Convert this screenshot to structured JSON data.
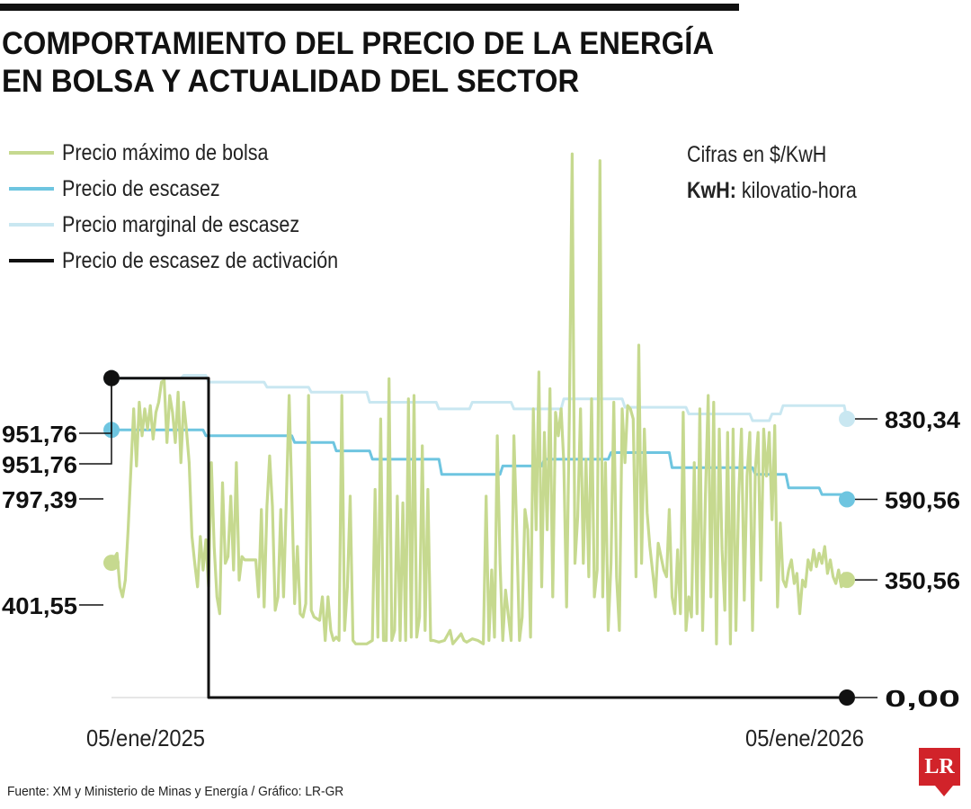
{
  "header": {
    "title_line1": "COMPORTAMIENTO DEL PRECIO DE LA ENERGÍA",
    "title_line2": "EN BOLSA Y ACTUALIDAD DEL SECTOR"
  },
  "units": {
    "line1": "Cifras en $/KwH",
    "kwh_bold": "KwH:",
    "kwh_text": " kilovatio-hora"
  },
  "footer": {
    "source": "Fuente: XM y Ministerio de Minas y Energía / Gráfico: LR-GR",
    "logo": "LR"
  },
  "colors": {
    "max_bolsa": "#c6d98f",
    "escasez": "#6ec5e0",
    "marginal": "#c9e7f1",
    "activacion": "#111111"
  },
  "chart_data": {
    "type": "line",
    "title": "COMPORTAMIENTO DEL PRECIO DE LA ENERGÍA EN BOLSA Y ACTUALIDAD DEL SECTOR",
    "unit": "$/KwH",
    "x_tick_labels": [
      "05/ene/2025",
      "05/ene/2026"
    ],
    "x_range_days": [
      0,
      365
    ],
    "ylim": [
      0,
      1650
    ],
    "legend_position": "top-left",
    "series": [
      {
        "name": "Precio máximo de bolsa",
        "color": "#c6d98f",
        "start_label": "401,55",
        "end_label": "350,56",
        "start_value": 401.55,
        "end_value": 350.56,
        "points": [
          [
            0,
            401.55
          ],
          [
            2,
            430
          ],
          [
            3,
            330
          ],
          [
            4,
            300
          ],
          [
            5,
            350
          ],
          [
            6,
            500
          ],
          [
            7,
            680
          ],
          [
            8,
            860
          ],
          [
            9,
            690
          ],
          [
            10,
            880
          ],
          [
            11,
            780
          ],
          [
            12,
            860
          ],
          [
            13,
            800
          ],
          [
            14,
            870
          ],
          [
            15,
            770
          ],
          [
            16,
            850
          ],
          [
            17,
            880
          ],
          [
            18,
            940
          ],
          [
            19,
            945
          ],
          [
            20,
            760
          ],
          [
            21,
            900
          ],
          [
            22,
            850
          ],
          [
            23,
            760
          ],
          [
            24,
            910
          ],
          [
            25,
            700
          ],
          [
            26,
            880
          ],
          [
            27,
            800
          ],
          [
            28,
            700
          ],
          [
            29,
            480
          ],
          [
            30,
            400
          ],
          [
            31,
            330
          ],
          [
            32,
            480
          ],
          [
            33,
            380
          ],
          [
            34,
            470
          ],
          [
            35,
            330
          ],
          [
            36,
            700
          ],
          [
            37,
            450
          ],
          [
            38,
            300
          ],
          [
            39,
            250
          ],
          [
            40,
            640
          ],
          [
            41,
            400
          ],
          [
            42,
            420
          ],
          [
            43,
            600
          ],
          [
            44,
            380
          ],
          [
            45,
            700
          ],
          [
            46,
            350
          ],
          [
            47,
            420
          ],
          [
            48,
            410
          ],
          [
            50,
            410
          ],
          [
            52,
            410
          ],
          [
            53,
            300
          ],
          [
            54,
            560
          ],
          [
            55,
            270
          ],
          [
            56,
            570
          ],
          [
            57,
            720
          ],
          [
            58,
            570
          ],
          [
            59,
            260
          ],
          [
            60,
            300
          ],
          [
            61,
            560
          ],
          [
            62,
            300
          ],
          [
            63,
            590
          ],
          [
            64,
            900
          ],
          [
            65,
            600
          ],
          [
            66,
            280
          ],
          [
            67,
            450
          ],
          [
            68,
            250
          ],
          [
            69,
            240
          ],
          [
            70,
            280
          ],
          [
            71,
            900
          ],
          [
            72,
            260
          ],
          [
            73,
            240
          ],
          [
            75,
            230
          ],
          [
            76,
            300
          ],
          [
            77,
            170
          ],
          [
            78,
            300
          ],
          [
            79,
            200
          ],
          [
            80,
            170
          ],
          [
            81,
            180
          ],
          [
            82,
            170
          ],
          [
            83,
            900
          ],
          [
            84,
            200
          ],
          [
            85,
            330
          ],
          [
            86,
            600
          ],
          [
            87,
            170
          ],
          [
            88,
            160
          ],
          [
            90,
            160
          ],
          [
            92,
            160
          ],
          [
            94,
            170
          ],
          [
            95,
            620
          ],
          [
            96,
            180
          ],
          [
            97,
            830
          ],
          [
            98,
            170
          ],
          [
            99,
            170
          ],
          [
            100,
            950
          ],
          [
            101,
            170
          ],
          [
            102,
            200
          ],
          [
            103,
            600
          ],
          [
            104,
            170
          ],
          [
            105,
            580
          ],
          [
            106,
            170
          ],
          [
            107,
            890
          ],
          [
            108,
            180
          ],
          [
            109,
            900
          ],
          [
            110,
            180
          ],
          [
            111,
            240
          ],
          [
            112,
            750
          ],
          [
            113,
            200
          ],
          [
            114,
            620
          ],
          [
            115,
            170
          ],
          [
            116,
            170
          ],
          [
            118,
            165
          ],
          [
            120,
            170
          ],
          [
            122,
            200
          ],
          [
            123,
            160
          ],
          [
            124,
            170
          ],
          [
            126,
            190
          ],
          [
            127,
            170
          ],
          [
            128,
            165
          ],
          [
            130,
            175
          ],
          [
            132,
            170
          ],
          [
            134,
            160
          ],
          [
            135,
            600
          ],
          [
            136,
            170
          ],
          [
            137,
            380
          ],
          [
            138,
            180
          ],
          [
            139,
            780
          ],
          [
            140,
            400
          ],
          [
            141,
            170
          ],
          [
            142,
            320
          ],
          [
            144,
            170
          ],
          [
            145,
            780
          ],
          [
            146,
            500
          ],
          [
            147,
            170
          ],
          [
            148,
            240
          ],
          [
            149,
            560
          ],
          [
            150,
            500
          ],
          [
            151,
            180
          ],
          [
            152,
            860
          ],
          [
            153,
            500
          ],
          [
            154,
            970
          ],
          [
            155,
            330
          ],
          [
            156,
            790
          ],
          [
            157,
            500
          ],
          [
            158,
            920
          ],
          [
            159,
            300
          ],
          [
            160,
            850
          ],
          [
            161,
            780
          ],
          [
            162,
            860
          ],
          [
            163,
            700
          ],
          [
            164,
            270
          ],
          [
            165,
            850
          ],
          [
            166,
            1620
          ],
          [
            167,
            400
          ],
          [
            168,
            540
          ],
          [
            169,
            860
          ],
          [
            170,
            400
          ],
          [
            171,
            710
          ],
          [
            172,
            360
          ],
          [
            173,
            890
          ],
          [
            174,
            300
          ],
          [
            175,
            380
          ],
          [
            176,
            1600
          ],
          [
            177,
            300
          ],
          [
            178,
            700
          ],
          [
            179,
            200
          ],
          [
            180,
            400
          ],
          [
            181,
            880
          ],
          [
            182,
            360
          ],
          [
            183,
            200
          ],
          [
            184,
            860
          ],
          [
            185,
            700
          ],
          [
            186,
            870
          ],
          [
            187,
            860
          ],
          [
            188,
            830
          ],
          [
            189,
            360
          ],
          [
            190,
            1050
          ],
          [
            191,
            400
          ],
          [
            192,
            800
          ],
          [
            193,
            550
          ],
          [
            194,
            450
          ],
          [
            196,
            300
          ],
          [
            197,
            460
          ],
          [
            199,
            380
          ],
          [
            200,
            360
          ],
          [
            201,
            560
          ],
          [
            202,
            300
          ],
          [
            203,
            250
          ],
          [
            204,
            440
          ],
          [
            205,
            250
          ],
          [
            206,
            850
          ],
          [
            207,
            200
          ],
          [
            208,
            300
          ],
          [
            209,
            240
          ],
          [
            210,
            700
          ],
          [
            211,
            250
          ],
          [
            212,
            860
          ],
          [
            213,
            200
          ],
          [
            214,
            600
          ],
          [
            215,
            900
          ],
          [
            216,
            300
          ],
          [
            217,
            880
          ],
          [
            218,
            160
          ],
          [
            219,
            800
          ],
          [
            220,
            440
          ],
          [
            221,
            260
          ],
          [
            222,
            790
          ],
          [
            223,
            160
          ],
          [
            224,
            800
          ],
          [
            225,
            200
          ],
          [
            226,
            600
          ],
          [
            227,
            800
          ],
          [
            228,
            290
          ],
          [
            229,
            660
          ],
          [
            230,
            790
          ],
          [
            231,
            200
          ],
          [
            232,
            680
          ],
          [
            233,
            790
          ],
          [
            234,
            350
          ],
          [
            235,
            800
          ],
          [
            236,
            660
          ],
          [
            237,
            790
          ],
          [
            238,
            530
          ],
          [
            239,
            810
          ],
          [
            240,
            270
          ],
          [
            241,
            520
          ],
          [
            242,
            350
          ],
          [
            243,
            330
          ],
          [
            244,
            380
          ],
          [
            245,
            410
          ],
          [
            246,
            340
          ],
          [
            247,
            370
          ],
          [
            248,
            250
          ],
          [
            249,
            350
          ],
          [
            250,
            330
          ],
          [
            251,
            410
          ],
          [
            252,
            380
          ],
          [
            253,
            440
          ],
          [
            254,
            390
          ],
          [
            255,
            430
          ],
          [
            256,
            400
          ],
          [
            257,
            450
          ],
          [
            258,
            370
          ],
          [
            259,
            410
          ],
          [
            260,
            360
          ],
          [
            261,
            340
          ],
          [
            262,
            380
          ],
          [
            263,
            330
          ],
          [
            264,
            370
          ],
          [
            265,
            350.56
          ]
        ]
      },
      {
        "name": "Precio de escasez",
        "color": "#6ec5e0",
        "start_label": "797,39",
        "end_label": "590,56",
        "start_value": 797.39,
        "end_value": 590.56,
        "points": [
          [
            0,
            797.39
          ],
          [
            33,
            797.39
          ],
          [
            34,
            780
          ],
          [
            65,
            780
          ],
          [
            66,
            760
          ],
          [
            80,
            760
          ],
          [
            81,
            735
          ],
          [
            93,
            735
          ],
          [
            94,
            710
          ],
          [
            118,
            710
          ],
          [
            119,
            665
          ],
          [
            140,
            665
          ],
          [
            141,
            690
          ],
          [
            155,
            690
          ],
          [
            156,
            710
          ],
          [
            179,
            710
          ],
          [
            180,
            730
          ],
          [
            201,
            730
          ],
          [
            202,
            685
          ],
          [
            231,
            685
          ],
          [
            232,
            665
          ],
          [
            243,
            665
          ],
          [
            244,
            625
          ],
          [
            255,
            625
          ],
          [
            256,
            605
          ],
          [
            264,
            605
          ],
          [
            265,
            590.56
          ]
        ]
      },
      {
        "name": "Precio marginal de escasez",
        "color": "#c9e7f1",
        "start_label": "951,76",
        "end_label": "830,34",
        "start_value": 951.76,
        "end_value": 830.34,
        "points": [
          [
            0,
            951.76
          ],
          [
            25,
            951.76
          ],
          [
            26,
            960
          ],
          [
            34,
            960
          ],
          [
            35,
            940
          ],
          [
            55,
            940
          ],
          [
            56,
            925
          ],
          [
            71,
            925
          ],
          [
            72,
            910
          ],
          [
            92,
            910
          ],
          [
            93,
            880
          ],
          [
            117,
            880
          ],
          [
            118,
            860
          ],
          [
            129,
            860
          ],
          [
            130,
            880
          ],
          [
            144,
            880
          ],
          [
            145,
            860
          ],
          [
            162,
            860
          ],
          [
            163,
            890
          ],
          [
            184,
            890
          ],
          [
            185,
            865
          ],
          [
            207,
            865
          ],
          [
            208,
            845
          ],
          [
            230,
            845
          ],
          [
            231,
            825
          ],
          [
            237,
            825
          ],
          [
            238,
            845
          ],
          [
            241,
            845
          ],
          [
            242,
            870
          ],
          [
            264,
            870
          ],
          [
            265,
            830.34
          ]
        ]
      },
      {
        "name": "Precio de escasez de activación",
        "color": "#111111",
        "start_label": "951,76",
        "end_label": "0,00",
        "start_value": 951.76,
        "end_value": 0.0,
        "points": [
          [
            0,
            951.76
          ],
          [
            35,
            951.76
          ],
          [
            35,
            0
          ],
          [
            265,
            0
          ]
        ]
      }
    ]
  }
}
